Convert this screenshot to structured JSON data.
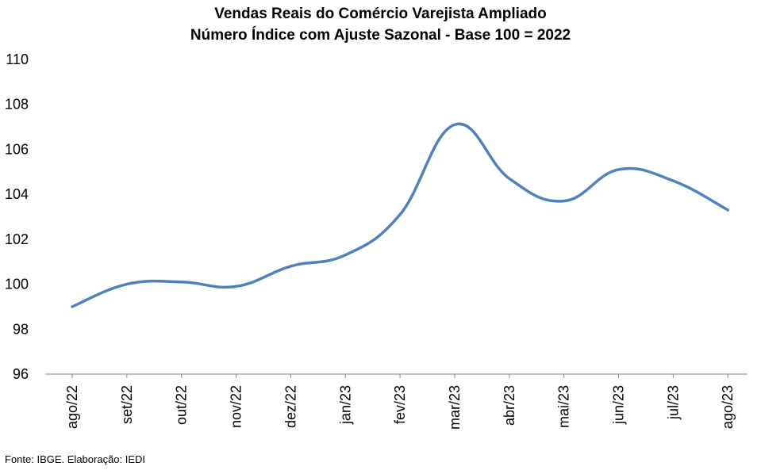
{
  "chart_data": {
    "type": "line",
    "title": "Vendas Reais do Comércio Varejista Ampliado",
    "subtitle": "Número Índice com Ajuste Sazonal - Base 100 = 2022",
    "categories": [
      "ago/22",
      "set/22",
      "out/22",
      "nov/22",
      "dez/22",
      "jan/23",
      "fev/23",
      "mar/23",
      "abr/23",
      "mai/23",
      "jun/23",
      "jul/23",
      "ago/23"
    ],
    "series": [
      {
        "values": [
          99.0,
          100.0,
          100.1,
          99.9,
          100.8,
          101.3,
          103.1,
          107.1,
          104.7,
          103.7,
          105.1,
          104.6,
          103.3
        ]
      }
    ],
    "ylim": [
      96,
      110
    ],
    "yticks": [
      96,
      98,
      100,
      102,
      104,
      106,
      108,
      110
    ],
    "grid": false,
    "legend": "none",
    "line_color": "#4F81BD"
  },
  "source": "Fonte: IBGE. Elaboração: IEDI"
}
